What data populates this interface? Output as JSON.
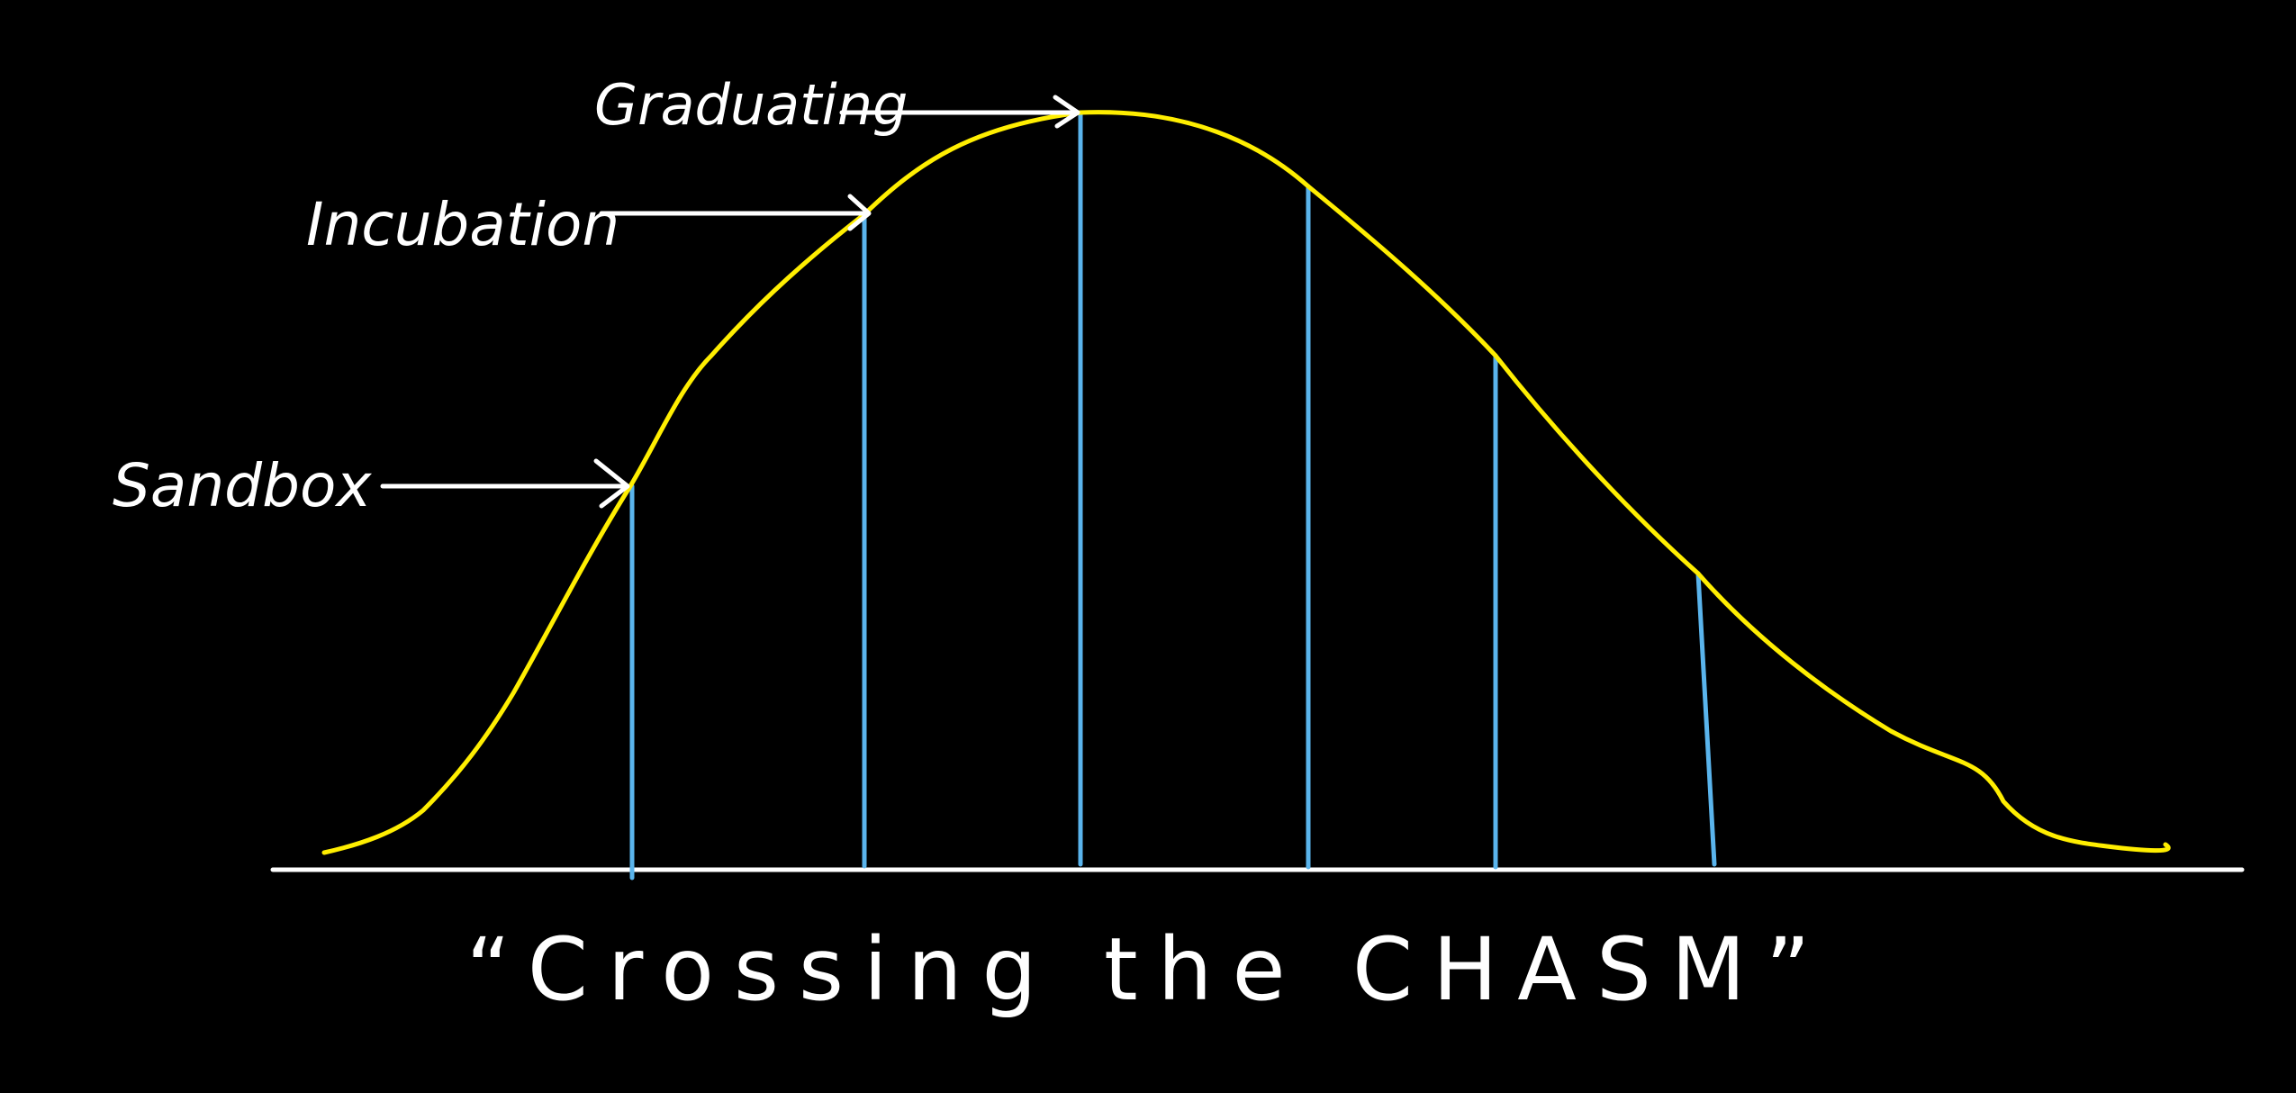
{
  "colors": {
    "background": "#000000",
    "curve": "#ffee00",
    "divider": "#5ab4ec",
    "ink": "#ffffff"
  },
  "labels": {
    "sandbox": "Sandbox",
    "incubation": "Incubation",
    "graduating": "Graduating"
  },
  "caption": "“Crossing the CHASM”"
}
